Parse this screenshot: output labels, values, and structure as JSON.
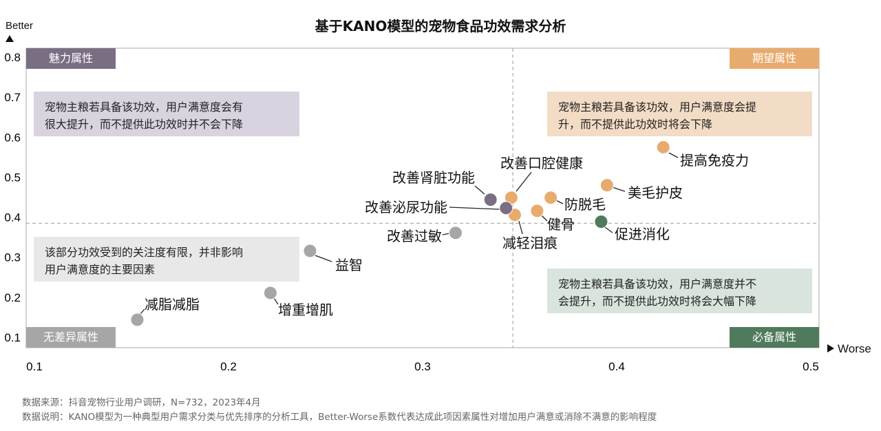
{
  "chart_data": {
    "type": "scatter",
    "title": "基于KANO模型的宠物食品功效需求分析",
    "xlabel": "Worse",
    "ylabel": "Better",
    "xlim": [
      0.1,
      0.5
    ],
    "ylim": [
      0.1,
      0.8
    ],
    "xticks": [
      "0.1",
      "0.2",
      "0.3",
      "0.4",
      "0.5"
    ],
    "yticks": [
      "0.8",
      "0.7",
      "0.6",
      "0.5",
      "0.4",
      "0.3",
      "0.2",
      "0.1"
    ],
    "xtick_values": [
      0.1,
      0.2,
      0.3,
      0.4,
      0.5
    ],
    "ytick_values": [
      0.8,
      0.7,
      0.6,
      0.5,
      0.4,
      0.3,
      0.2,
      0.1
    ],
    "grid": false,
    "reference_lines": {
      "x": 0.3465,
      "y": 0.385
    },
    "colors": {
      "attractive": "#7a6e84",
      "one_dimensional": "#e8ab6e",
      "must_be": "#4f7a5c",
      "indifferent": "#a6a6a6"
    },
    "points": [
      {
        "label": "提高免疫力",
        "x": 0.424,
        "y": 0.575,
        "category": "one_dimensional"
      },
      {
        "label": "美毛护皮",
        "x": 0.395,
        "y": 0.48,
        "category": "one_dimensional"
      },
      {
        "label": "防脱毛",
        "x": 0.366,
        "y": 0.449,
        "category": "one_dimensional"
      },
      {
        "label": "健骨",
        "x": 0.359,
        "y": 0.416,
        "category": "one_dimensional"
      },
      {
        "label": "促进消化",
        "x": 0.392,
        "y": 0.389,
        "category": "must_be"
      },
      {
        "label": "改善口腔健康",
        "x": 0.3457,
        "y": 0.449,
        "category": "one_dimensional"
      },
      {
        "label": "减轻泪痕",
        "x": 0.3475,
        "y": 0.406,
        "category": "one_dimensional"
      },
      {
        "label": "改善肾脏功能",
        "x": 0.335,
        "y": 0.444,
        "category": "attractive"
      },
      {
        "label": "改善泌尿功能",
        "x": 0.343,
        "y": 0.423,
        "category": "attractive"
      },
      {
        "label": "改善过敏",
        "x": 0.317,
        "y": 0.361,
        "category": "indifferent"
      },
      {
        "label": "益智",
        "x": 0.242,
        "y": 0.316,
        "category": "indifferent"
      },
      {
        "label": "增重增肌",
        "x": 0.2216,
        "y": 0.211,
        "category": "indifferent"
      },
      {
        "label": "减脂减脂",
        "x": 0.153,
        "y": 0.144,
        "category": "indifferent"
      }
    ],
    "quadrants": {
      "attractive": {
        "label": "魅力属性",
        "desc1": "宠物主粮若具备该功效，用户满意度会有",
        "desc2": "很大提升，而不提供此功效时并不会下降"
      },
      "one_dimensional": {
        "label": "期望属性",
        "desc1": "宠物主粮若具备该功效，用户满意度会提",
        "desc2": "升，而不提供此功效时将会下降"
      },
      "indifferent": {
        "label": "无差异属性",
        "desc1": "该部分功效受到的关注度有限，并非影响",
        "desc2": "用户满意度的主要因素"
      },
      "must_be": {
        "label": "必备属性",
        "desc1": "宠物主粮若具备该功效，用户满意度并不",
        "desc2": "会提升，而不提供此功效时将会大幅下降"
      }
    }
  },
  "footnotes": {
    "source": "数据来源：抖音宠物行业用户调研，N=732，2023年4月",
    "note": "数据说明：KANO模型为一种典型用户需求分类与优先排序的分析工具，Better-Worse系数代表达成此项因素属性对增加用户满意或消除不满意的影响程度"
  }
}
